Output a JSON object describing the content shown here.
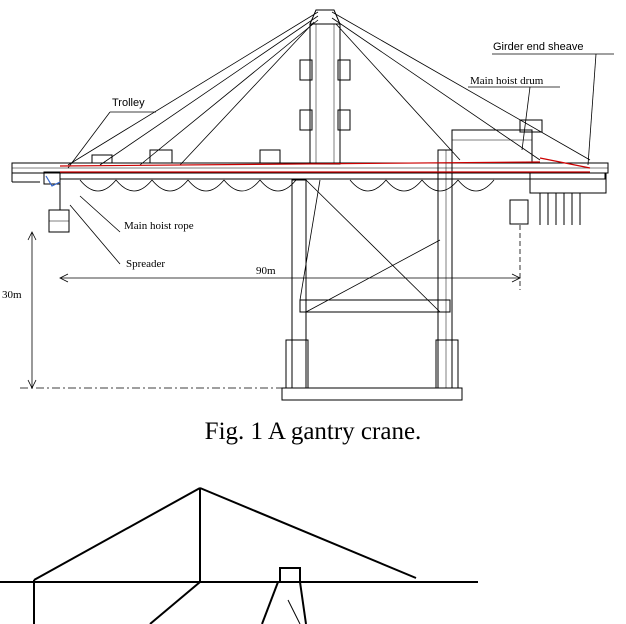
{
  "figure1": {
    "labels": {
      "girder_end_sheave": "Girder end sheave",
      "main_hoist_drum": "Main hoist drum",
      "trolley": "Trolley",
      "main_hoist_rope": "Main hoist rope",
      "spreader": "Spreader",
      "span": "90m",
      "height": "30m"
    },
    "caption": "Fig. 1 A gantry crane."
  },
  "colors": {
    "line": "#000000",
    "rope": "#cc0000",
    "accent_blue": "#3366cc"
  }
}
